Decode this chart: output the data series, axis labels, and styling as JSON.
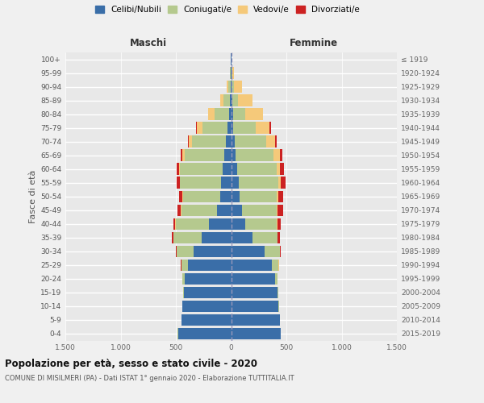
{
  "age_groups": [
    "0-4",
    "5-9",
    "10-14",
    "15-19",
    "20-24",
    "25-29",
    "30-34",
    "35-39",
    "40-44",
    "45-49",
    "50-54",
    "55-59",
    "60-64",
    "65-69",
    "70-74",
    "75-79",
    "80-84",
    "85-89",
    "90-94",
    "95-99",
    "100+"
  ],
  "birth_years": [
    "2015-2019",
    "2010-2014",
    "2005-2009",
    "2000-2004",
    "1995-1999",
    "1990-1994",
    "1985-1989",
    "1980-1984",
    "1975-1979",
    "1970-1974",
    "1965-1969",
    "1960-1964",
    "1955-1959",
    "1950-1954",
    "1945-1949",
    "1940-1944",
    "1935-1939",
    "1930-1934",
    "1925-1929",
    "1920-1924",
    "≤ 1919"
  ],
  "maschi": {
    "celibi": [
      480,
      450,
      440,
      430,
      420,
      390,
      340,
      270,
      200,
      130,
      95,
      90,
      80,
      60,
      45,
      30,
      20,
      10,
      5,
      3,
      2
    ],
    "coniugati": [
      2,
      2,
      2,
      5,
      20,
      60,
      150,
      250,
      300,
      320,
      340,
      370,
      380,
      360,
      310,
      230,
      130,
      60,
      20,
      5,
      2
    ],
    "vedovi": [
      0,
      0,
      0,
      0,
      2,
      2,
      2,
      3,
      5,
      5,
      5,
      5,
      10,
      20,
      25,
      50,
      60,
      30,
      15,
      2,
      0
    ],
    "divorziati": [
      0,
      0,
      0,
      0,
      1,
      3,
      8,
      15,
      20,
      30,
      30,
      30,
      25,
      15,
      10,
      5,
      0,
      0,
      0,
      0,
      0
    ]
  },
  "femmine": {
    "nubili": [
      450,
      440,
      430,
      420,
      400,
      370,
      300,
      190,
      130,
      100,
      80,
      70,
      55,
      40,
      30,
      20,
      15,
      10,
      5,
      3,
      2
    ],
    "coniugate": [
      2,
      2,
      2,
      5,
      20,
      60,
      140,
      230,
      285,
      310,
      330,
      360,
      360,
      340,
      290,
      200,
      110,
      50,
      20,
      5,
      2
    ],
    "vedove": [
      0,
      0,
      0,
      0,
      2,
      2,
      2,
      3,
      5,
      10,
      15,
      20,
      30,
      60,
      80,
      130,
      160,
      130,
      70,
      20,
      2
    ],
    "divorziate": [
      0,
      0,
      0,
      0,
      1,
      3,
      8,
      20,
      30,
      50,
      45,
      40,
      30,
      20,
      15,
      10,
      5,
      2,
      0,
      0,
      0
    ]
  },
  "colors": {
    "celibi_nubili": "#3a6ea8",
    "coniugati": "#b5c98e",
    "vedovi": "#f5c97a",
    "divorziati": "#cc2222"
  },
  "xlim": 1500,
  "title": "Popolazione per età, sesso e stato civile - 2020",
  "subtitle": "COMUNE DI MISILMERI (PA) - Dati ISTAT 1° gennaio 2020 - Elaborazione TUTTITALIA.IT",
  "ylabel_left": "Fasce di età",
  "xlabel_maschi": "Maschi",
  "xlabel_femmine": "Femmine",
  "legend_labels": [
    "Celibi/Nubili",
    "Coniugati/e",
    "Vedovi/e",
    "Divorziati/e"
  ],
  "bg_color": "#f0f0f0",
  "plot_bg_color": "#e8e8e8"
}
